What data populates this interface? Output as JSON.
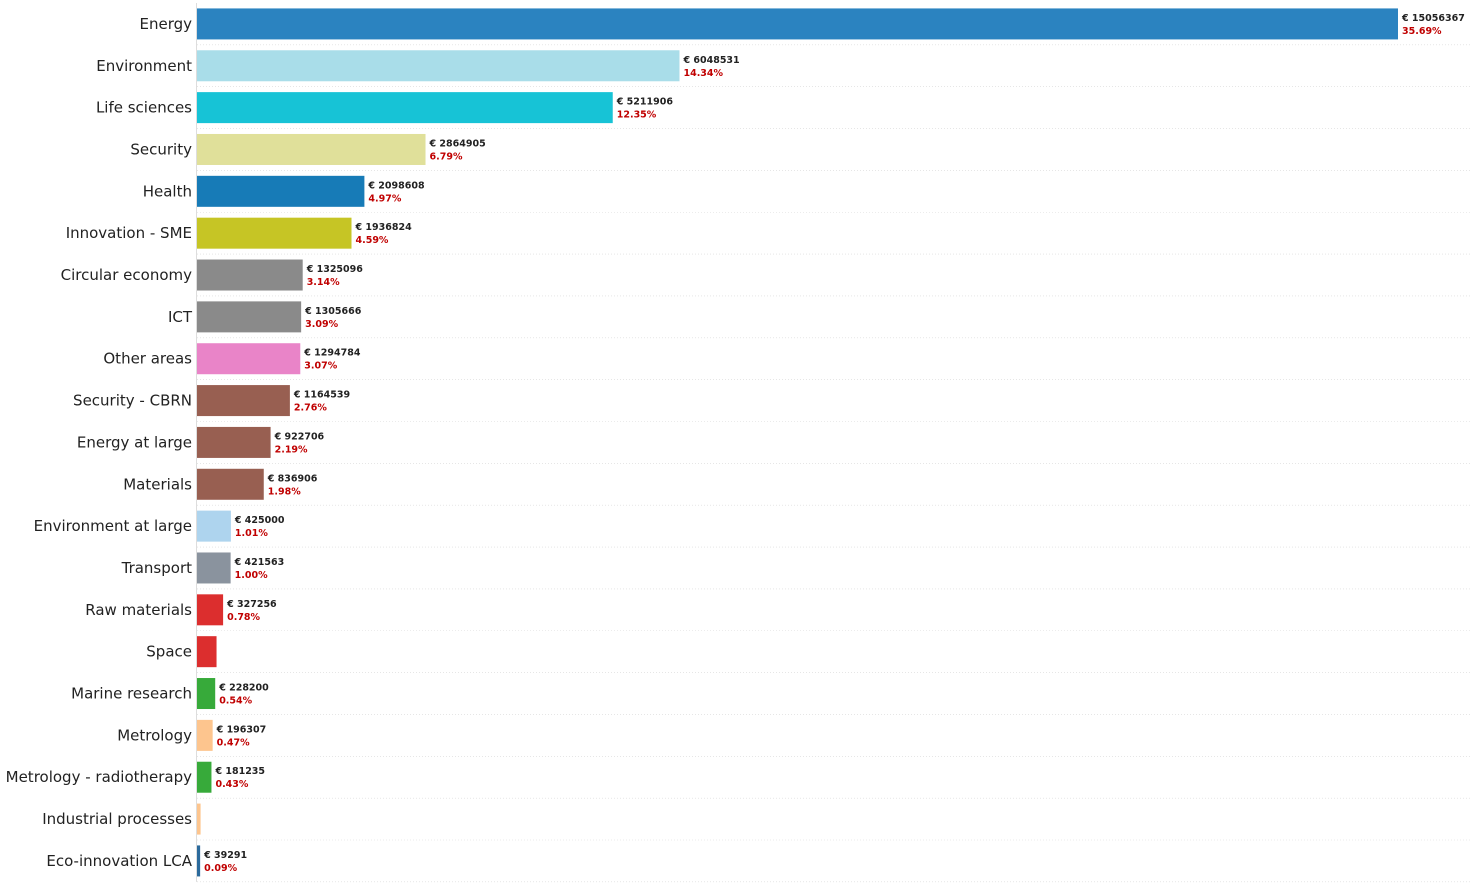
{
  "chart_data": {
    "type": "bar",
    "orientation": "horizontal",
    "title": "",
    "xlabel": "",
    "ylabel": "",
    "xlim": [
      0,
      15800000
    ],
    "grid": false,
    "legend": "none",
    "currency_symbol": "€",
    "percent_color": "#c00000",
    "categories": [
      "Energy",
      "Environment",
      "Life sciences",
      "Security",
      "Health",
      "Innovation - SME",
      "Circular economy",
      "ICT",
      "Other areas",
      "Security - CBRN",
      "Energy at large",
      "Materials",
      "Environment at large",
      "Transport",
      "Raw materials",
      "Space",
      "Marine research",
      "Metrology",
      "Metrology - radiotherapy",
      "Industrial processes",
      "Eco-innovation LCA"
    ],
    "values": [
      15056367,
      6048531,
      5211906,
      2864905,
      2098608,
      1936824,
      1325096,
      1305666,
      1294784,
      1164539,
      922706,
      836906,
      425000,
      421563,
      327256,
      245000,
      228200,
      196307,
      181235,
      45000,
      39291
    ],
    "value_labels": [
      "€ 15056367",
      "€ 6048531",
      "€ 5211906",
      "€ 2864905",
      "€ 2098608",
      "€ 1936824",
      "€ 1325096",
      "€ 1305666",
      "€ 1294784",
      "€ 1164539",
      "€ 922706",
      "€ 836906",
      "€ 425000",
      "€ 421563",
      "€ 327256",
      "",
      "€ 228200",
      "€ 196307",
      "€ 181235",
      "",
      "€ 39291"
    ],
    "percent_labels": [
      "35.69%",
      "14.34%",
      "12.35%",
      "6.79%",
      "4.97%",
      "4.59%",
      "3.14%",
      "3.09%",
      "3.07%",
      "2.76%",
      "2.19%",
      "1.98%",
      "1.01%",
      "1.00%",
      "0.78%",
      "",
      "0.54%",
      "0.47%",
      "0.43%",
      "",
      "0.09%"
    ],
    "colors": [
      "#2b83c0",
      "#a9dde9",
      "#17c3d6",
      "#e0e09a",
      "#177bb7",
      "#c6c525",
      "#8a8a8a",
      "#8a8a8a",
      "#e984c8",
      "#985f51",
      "#985f51",
      "#985f51",
      "#aed4ee",
      "#8a939e",
      "#dc2e2e",
      "#dc2e2e",
      "#37aa3a",
      "#fdc58e",
      "#37aa3a",
      "#fdc58e",
      "#2b6a9c"
    ]
  }
}
